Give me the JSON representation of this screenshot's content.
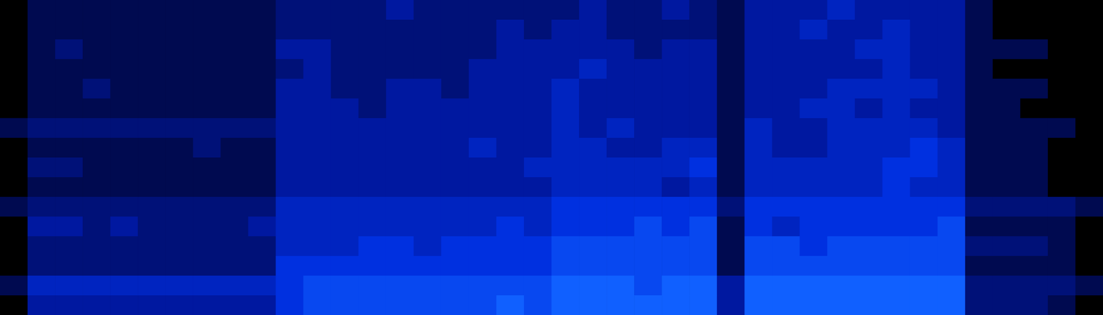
{
  "chart_data": {
    "type": "heatmap",
    "tick_labels": false,
    "zlim": [
      0,
      10
    ],
    "cells": [
      [
        0,
        1,
        1,
        1,
        1,
        1,
        1,
        1,
        1,
        1,
        2,
        2,
        2,
        2,
        3,
        2,
        2,
        2,
        2,
        2,
        2,
        3,
        2,
        2,
        3,
        2,
        1,
        3,
        3,
        3,
        4,
        3,
        3,
        3,
        3,
        1,
        0,
        0,
        0,
        0
      ],
      [
        0,
        1,
        1,
        1,
        1,
        1,
        1,
        1,
        1,
        1,
        2,
        2,
        2,
        2,
        2,
        2,
        2,
        2,
        3,
        2,
        3,
        3,
        2,
        2,
        2,
        2,
        1,
        3,
        3,
        4,
        3,
        3,
        4,
        3,
        3,
        1,
        0,
        0,
        0,
        0
      ],
      [
        0,
        1,
        2,
        1,
        1,
        1,
        1,
        1,
        1,
        1,
        3,
        3,
        2,
        2,
        2,
        2,
        2,
        2,
        3,
        3,
        3,
        3,
        3,
        2,
        3,
        3,
        1,
        3,
        3,
        3,
        3,
        4,
        4,
        3,
        3,
        1,
        1,
        1,
        0,
        0
      ],
      [
        0,
        1,
        1,
        1,
        1,
        1,
        1,
        1,
        1,
        1,
        2,
        3,
        2,
        2,
        2,
        2,
        2,
        3,
        3,
        3,
        3,
        4,
        3,
        3,
        3,
        3,
        1,
        3,
        3,
        3,
        3,
        3,
        4,
        3,
        3,
        1,
        0,
        0,
        0,
        0
      ],
      [
        0,
        1,
        1,
        2,
        1,
        1,
        1,
        1,
        1,
        1,
        3,
        3,
        2,
        2,
        3,
        3,
        2,
        3,
        3,
        3,
        4,
        3,
        3,
        3,
        3,
        3,
        1,
        3,
        3,
        3,
        4,
        4,
        4,
        4,
        3,
        1,
        1,
        1,
        0,
        0
      ],
      [
        0,
        1,
        1,
        1,
        1,
        1,
        1,
        1,
        1,
        1,
        3,
        3,
        3,
        2,
        3,
        3,
        3,
        3,
        3,
        3,
        4,
        3,
        3,
        3,
        3,
        3,
        1,
        3,
        3,
        4,
        4,
        3,
        4,
        3,
        3,
        1,
        1,
        0,
        0,
        0
      ],
      [
        1,
        2,
        2,
        2,
        2,
        2,
        2,
        2,
        2,
        2,
        3,
        3,
        3,
        3,
        3,
        3,
        3,
        3,
        3,
        3,
        4,
        3,
        4,
        3,
        3,
        3,
        1,
        4,
        3,
        3,
        4,
        4,
        4,
        4,
        3,
        1,
        1,
        1,
        1,
        0
      ],
      [
        0,
        1,
        1,
        1,
        1,
        1,
        1,
        2,
        1,
        1,
        3,
        3,
        3,
        3,
        3,
        3,
        3,
        4,
        3,
        3,
        4,
        4,
        3,
        3,
        4,
        4,
        1,
        4,
        3,
        3,
        4,
        4,
        4,
        5,
        4,
        1,
        1,
        1,
        0,
        0
      ],
      [
        0,
        2,
        2,
        1,
        1,
        1,
        1,
        1,
        1,
        1,
        3,
        3,
        3,
        3,
        3,
        3,
        3,
        3,
        3,
        4,
        4,
        4,
        4,
        4,
        4,
        5,
        1,
        4,
        4,
        4,
        4,
        4,
        5,
        5,
        4,
        1,
        1,
        1,
        0,
        0
      ],
      [
        0,
        1,
        1,
        1,
        1,
        1,
        1,
        1,
        1,
        1,
        3,
        3,
        3,
        3,
        3,
        3,
        3,
        3,
        3,
        3,
        4,
        4,
        4,
        4,
        3,
        4,
        1,
        4,
        4,
        4,
        4,
        4,
        5,
        4,
        4,
        1,
        1,
        1,
        0,
        0
      ],
      [
        1,
        2,
        2,
        2,
        2,
        2,
        2,
        2,
        2,
        2,
        4,
        4,
        4,
        4,
        4,
        4,
        4,
        4,
        4,
        4,
        5,
        5,
        5,
        5,
        5,
        5,
        2,
        5,
        5,
        5,
        5,
        5,
        5,
        5,
        5,
        2,
        2,
        2,
        2,
        1
      ],
      [
        0,
        3,
        3,
        2,
        3,
        2,
        2,
        2,
        2,
        3,
        4,
        4,
        4,
        4,
        4,
        4,
        4,
        4,
        5,
        4,
        5,
        5,
        5,
        6,
        5,
        6,
        1,
        5,
        4,
        5,
        5,
        5,
        5,
        5,
        6,
        1,
        1,
        1,
        1,
        0
      ],
      [
        0,
        2,
        2,
        2,
        2,
        2,
        2,
        2,
        2,
        2,
        4,
        4,
        4,
        5,
        5,
        4,
        5,
        5,
        5,
        5,
        6,
        6,
        6,
        6,
        6,
        6,
        1,
        6,
        6,
        5,
        6,
        6,
        6,
        6,
        6,
        2,
        2,
        2,
        1,
        0
      ],
      [
        0,
        2,
        2,
        2,
        2,
        2,
        2,
        2,
        2,
        2,
        5,
        5,
        5,
        5,
        5,
        5,
        5,
        5,
        5,
        5,
        6,
        6,
        6,
        6,
        6,
        6,
        1,
        6,
        6,
        6,
        6,
        6,
        6,
        6,
        6,
        1,
        1,
        1,
        1,
        0
      ],
      [
        1,
        4,
        4,
        4,
        4,
        4,
        4,
        4,
        4,
        4,
        5,
        6,
        6,
        6,
        6,
        6,
        6,
        6,
        6,
        6,
        7,
        7,
        7,
        6,
        7,
        7,
        3,
        7,
        7,
        7,
        7,
        7,
        7,
        7,
        7,
        2,
        2,
        2,
        2,
        1
      ],
      [
        0,
        3,
        3,
        3,
        3,
        3,
        3,
        3,
        3,
        3,
        5,
        6,
        6,
        6,
        6,
        6,
        6,
        6,
        7,
        6,
        7,
        7,
        7,
        7,
        7,
        7,
        3,
        7,
        7,
        7,
        7,
        7,
        7,
        7,
        7,
        2,
        2,
        2,
        1,
        0
      ]
    ]
  }
}
